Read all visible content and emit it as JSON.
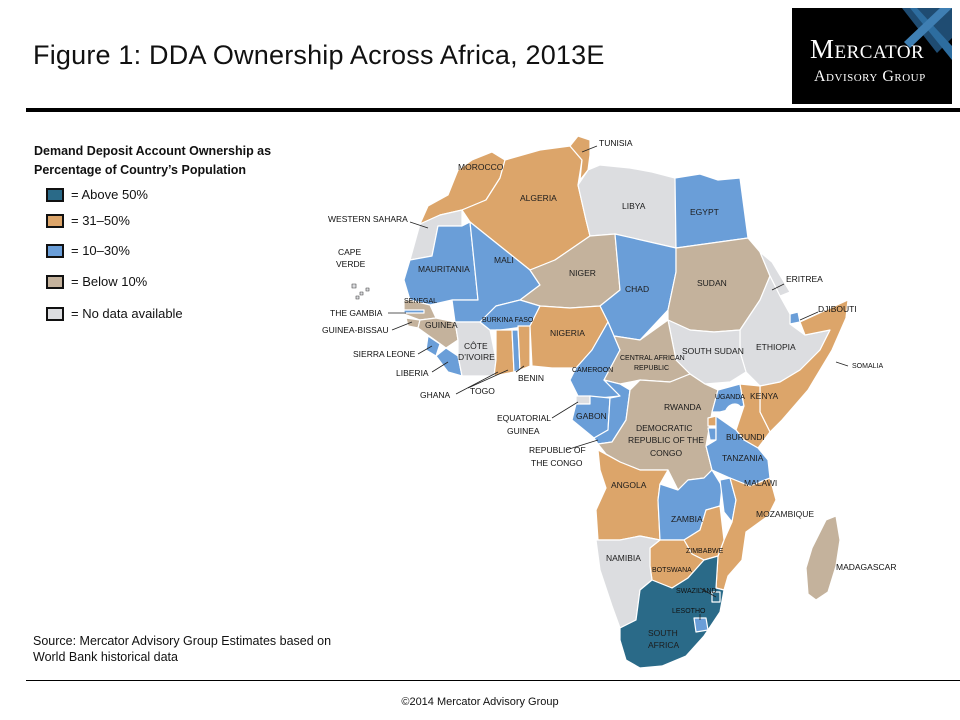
{
  "title": "Figure 1: DDA Ownership Across Africa, 2013E",
  "logo": {
    "line1": "Mercator",
    "line2": "Advisory Group"
  },
  "legend": {
    "title": "Demand Deposit Account Ownership as Percentage of Country’s Population",
    "items": [
      {
        "label": "= Above 50%",
        "color": "#2a6a88"
      },
      {
        "label": "= 31–50%",
        "color": "#dca56a"
      },
      {
        "label": "= 10–30%",
        "color": "#6a9ed8"
      },
      {
        "label": "= Below 10%",
        "color": "#c4b29c"
      },
      {
        "label": "= No data available",
        "color": "#dcdde0"
      }
    ]
  },
  "countries": [
    {
      "name": "MOROCCO",
      "category": "31–50%"
    },
    {
      "name": "ALGERIA",
      "category": "31–50%"
    },
    {
      "name": "TUNISIA",
      "category": "31–50%"
    },
    {
      "name": "LIBYA",
      "category": "No data available"
    },
    {
      "name": "EGYPT",
      "category": "10–30%"
    },
    {
      "name": "WESTERN SAHARA",
      "category": "No data available"
    },
    {
      "name": "MAURITANIA",
      "category": "10–30%"
    },
    {
      "name": "MALI",
      "category": "10–30%"
    },
    {
      "name": "NIGER",
      "category": "Below 10%"
    },
    {
      "name": "CHAD",
      "category": "10–30%"
    },
    {
      "name": "SUDAN",
      "category": "Below 10%"
    },
    {
      "name": "ERITREA",
      "category": "No data available"
    },
    {
      "name": "DJIBOUTI",
      "category": "10–30%"
    },
    {
      "name": "SOMALIA",
      "category": "31–50%"
    },
    {
      "name": "ETHIOPIA",
      "category": "No data available"
    },
    {
      "name": "SOUTH SUDAN",
      "category": "No data available"
    },
    {
      "name": "CAPE VERDE",
      "category": "No data available"
    },
    {
      "name": "SENEGAL",
      "category": "Below 10%"
    },
    {
      "name": "THE GAMBIA",
      "category": "10–30%"
    },
    {
      "name": "GUINEA-BISSAU",
      "category": "Below 10%"
    },
    {
      "name": "GUINEA",
      "category": "Below 10%"
    },
    {
      "name": "SIERRA LEONE",
      "category": "10–30%"
    },
    {
      "name": "LIBERIA",
      "category": "10–30%"
    },
    {
      "name": "CÔTE D’IVOIRE",
      "category": "No data available"
    },
    {
      "name": "BURKINA FASO",
      "category": "10–30%"
    },
    {
      "name": "GHANA",
      "category": "31–50%"
    },
    {
      "name": "TOGO",
      "category": "10–30%"
    },
    {
      "name": "BENIN",
      "category": "31–50%"
    },
    {
      "name": "NIGERIA",
      "category": "31–50%"
    },
    {
      "name": "CAMEROON",
      "category": "10–30%"
    },
    {
      "name": "CENTRAL AFRICAN REPUBLIC",
      "category": "Below 10%"
    },
    {
      "name": "EQUATORIAL GUINEA",
      "category": "No data available"
    },
    {
      "name": "GABON",
      "category": "10–30%"
    },
    {
      "name": "REPUBLIC OF THE CONGO",
      "category": "10–30%"
    },
    {
      "name": "DEMOCRATIC REPUBLIC OF THE CONGO",
      "category": "Below 10%"
    },
    {
      "name": "UGANDA",
      "category": "10–30%"
    },
    {
      "name": "KENYA",
      "category": "31–50%"
    },
    {
      "name": "RWANDA",
      "category": "31–50%"
    },
    {
      "name": "BURUNDI",
      "category": "10–30%"
    },
    {
      "name": "TANZANIA",
      "category": "10–30%"
    },
    {
      "name": "ANGOLA",
      "category": "31–50%"
    },
    {
      "name": "ZAMBIA",
      "category": "10–30%"
    },
    {
      "name": "MALAWI",
      "category": "10–30%"
    },
    {
      "name": "MOZAMBIQUE",
      "category": "31–50%"
    },
    {
      "name": "ZIMBABWE",
      "category": "31–50%"
    },
    {
      "name": "BOTSWANA",
      "category": "31–50%"
    },
    {
      "name": "NAMIBIA",
      "category": "No data available"
    },
    {
      "name": "SOUTH AFRICA",
      "category": "Above 50%"
    },
    {
      "name": "SWAZILAND",
      "category": "Above 50%"
    },
    {
      "name": "LESOTHO",
      "category": "10–30%"
    },
    {
      "name": "MADAGASCAR",
      "category": "Below 10%"
    }
  ],
  "labels": {
    "tunisia": "TUNISIA",
    "morocco": "MOROCCO",
    "algeria": "ALGERIA",
    "libya": "LIBYA",
    "egypt": "EGYPT",
    "western_sahara": "WESTERN SAHARA",
    "cape_verde_1": "CAPE",
    "cape_verde_2": "VERDE",
    "mauritania": "MAURITANIA",
    "mali": "MALI",
    "niger": "NIGER",
    "chad": "CHAD",
    "sudan": "SUDAN",
    "eritrea": "ERITREA",
    "djibouti": "DJIBOUTI",
    "somalia": "SOMALIA",
    "ethiopia": "ETHIOPIA",
    "south_sudan": "SOUTH SUDAN",
    "senegal": "SENEGAL",
    "gambia": "THE GAMBIA",
    "guinea_bissau": "GUINEA-BISSAU",
    "guinea": "GUINEA",
    "sierra_leone": "SIERRA LEONE",
    "liberia": "LIBERIA",
    "cote_1": "CÔTE",
    "cote_2": "D’IVOIRE",
    "burkina": "BURKINA FASO",
    "ghana": "GHANA",
    "togo": "TOGO",
    "benin": "BENIN",
    "nigeria": "NIGERIA",
    "cameroon": "CAMEROON",
    "car_1": "CENTRAL AFRICAN",
    "car_2": "REPUBLIC",
    "eq_guinea_1": "EQUATORIAL",
    "eq_guinea_2": "GUINEA",
    "gabon": "GABON",
    "congo_1": "REPUBLIC OF",
    "congo_2": "THE CONGO",
    "drc_1": "DEMOCRATIC",
    "drc_2": "REPUBLIC OF THE",
    "drc_3": "CONGO",
    "uganda": "UGANDA",
    "kenya": "KENYA",
    "rwanda": "RWANDA",
    "burundi": "BURUNDI",
    "tanzania": "TANZANIA",
    "angola": "ANGOLA",
    "zambia": "ZAMBIA",
    "malawi": "MALAWI",
    "mozambique": "MOZAMBIQUE",
    "zimbabwe": "ZIMBABWE",
    "botswana": "BOTSWANA",
    "namibia": "NAMIBIA",
    "south_africa_1": "SOUTH",
    "south_africa_2": "AFRICA",
    "swaziland": "SWAZILAND",
    "lesotho": "LESOTHO",
    "madagascar": "MADAGASCAR"
  },
  "source": "Source: Mercator Advisory Group Estimates based on World Bank historical data",
  "copyright": "©2014 Mercator Advisory Group"
}
